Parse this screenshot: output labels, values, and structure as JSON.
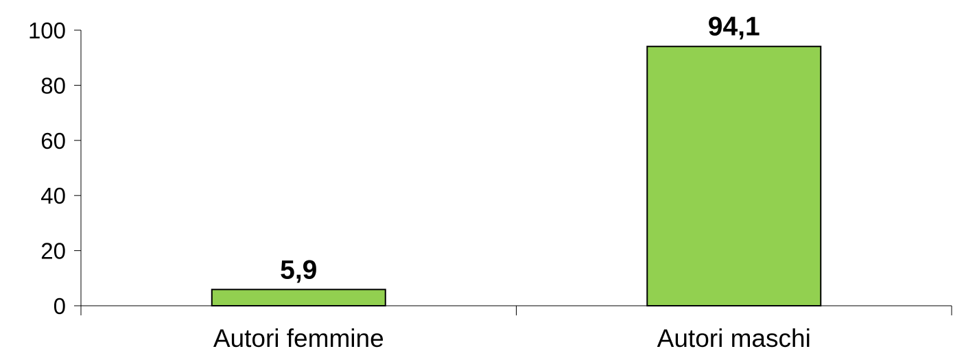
{
  "chart_data": {
    "type": "bar",
    "categories": [
      "Autori femmine",
      "Autori maschi"
    ],
    "values": [
      5.9,
      94.1
    ],
    "data_labels": [
      "5,9",
      "94,1"
    ],
    "ylim": [
      0,
      100
    ],
    "yticks": [
      0,
      20,
      40,
      60,
      80,
      100
    ],
    "ytick_labels": [
      "0",
      "20",
      "40",
      "60",
      "80",
      "100"
    ],
    "title": "",
    "xlabel": "",
    "ylabel": "",
    "grid": false,
    "legend": "none",
    "bar_color": "#92d050",
    "bar_edge_color": "#000000"
  }
}
